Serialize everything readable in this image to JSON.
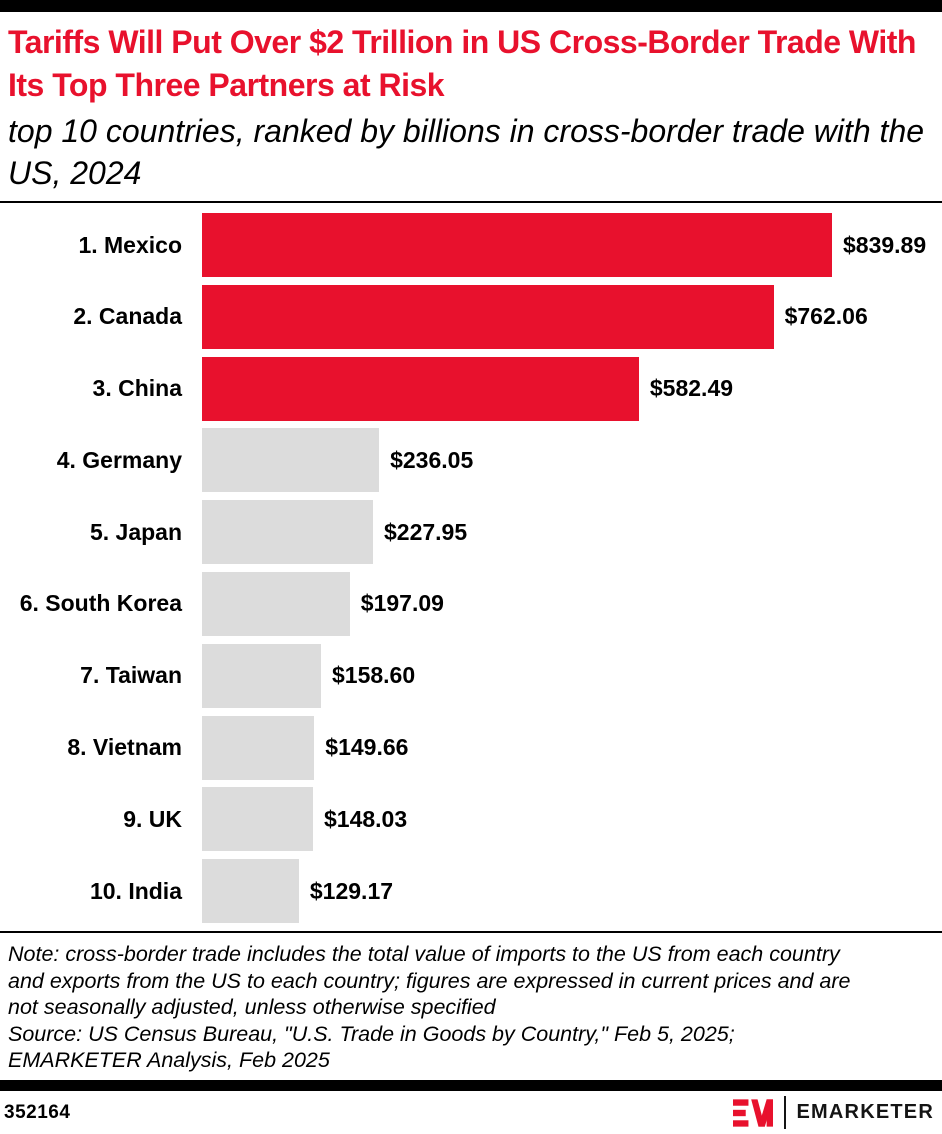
{
  "header": {
    "title": "Tariffs Will Put Over $2 Trillion in US Cross-Border Trade With Its Top Three Partners at Risk",
    "subtitle": "top 10 countries, ranked by billions in cross-border trade with the US, 2024"
  },
  "chart_data": {
    "type": "bar",
    "orientation": "horizontal",
    "title": "Tariffs Will Put Over $2 Trillion in US Cross-Border Trade With Its Top Three Partners at Risk",
    "subtitle": "top 10 countries, ranked by billions in cross-border trade with the US, 2024",
    "unit": "billions of US dollars",
    "categories": [
      "1. Mexico",
      "2. Canada",
      "3. China",
      "4. Germany",
      "5. Japan",
      "6. South Korea",
      "7. Taiwan",
      "8. Vietnam",
      "9. UK",
      "10. India"
    ],
    "values": [
      839.89,
      762.06,
      582.49,
      236.05,
      227.95,
      197.09,
      158.6,
      149.66,
      148.03,
      129.17
    ],
    "value_labels": [
      "$839.89",
      "$762.06",
      "$582.49",
      "$236.05",
      "$227.95",
      "$197.09",
      "$158.60",
      "$149.66",
      "$148.03",
      "$129.17"
    ],
    "xlim": [
      0,
      839.89
    ],
    "grid": false,
    "legend": false,
    "highlight_count": 3,
    "highlight_color": "#e8112d",
    "bar_color": "#dcdcdc"
  },
  "notes": {
    "lines": [
      "Note: cross-border trade includes the total value of imports to the US from each country",
      "and exports from the US to each country; figures are expressed in current prices and are",
      "not seasonally adjusted, unless otherwise specified",
      "Source: US Census Bureau, \"U.S. Trade in Goods by Country,\" Feb 5, 2025;",
      "EMARKETER Analysis, Feb 2025"
    ]
  },
  "footer": {
    "chart_id": "352164",
    "brand": "EMARKETER"
  }
}
